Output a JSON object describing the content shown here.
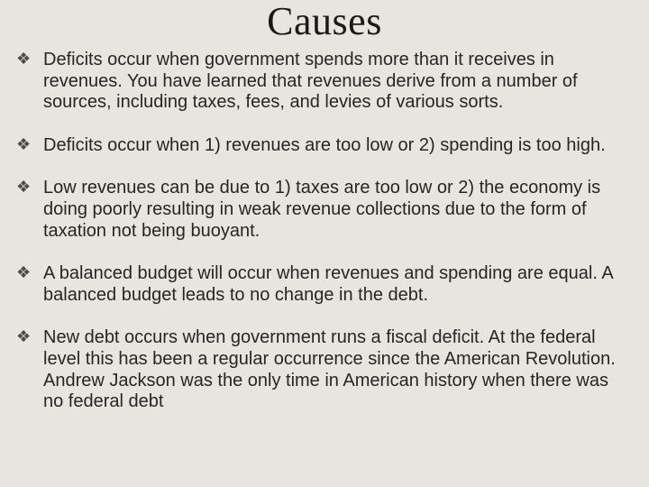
{
  "slide": {
    "title": "Causes",
    "title_font": "Georgia, serif",
    "title_fontsize": 44,
    "body_font": "Arial, sans-serif",
    "body_fontsize": 20,
    "background_color": "#e8e4de",
    "text_color": "#262626",
    "bullet_glyph": "❖",
    "bullets": [
      "Deficits occur when government spends more than it receives in revenues. You have learned that revenues derive from a number of sources, including taxes, fees, and levies of various sorts.",
      "Deficits occur when 1) revenues are too low or 2) spending is too high.",
      "Low revenues can be due to 1) taxes are too low or 2) the economy is doing poorly resulting in weak revenue collections due to the form of taxation not being buoyant.",
      "A balanced budget will occur when revenues and spending are equal. A balanced budget leads to no change in the debt.",
      "New debt occurs when government runs a fiscal deficit. At the federal level this has been a regular occurrence since the American Revolution. Andrew Jackson was the only time in American history when there was no federal debt"
    ]
  }
}
